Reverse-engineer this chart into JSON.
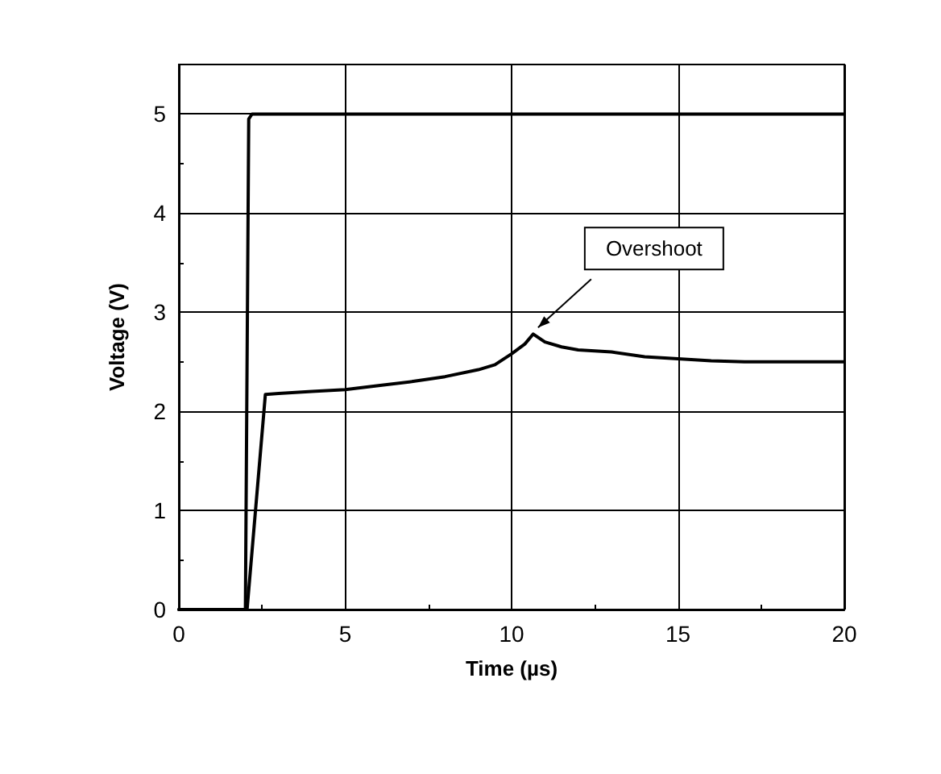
{
  "chart_data": {
    "type": "line",
    "xlabel": "Time (µs)",
    "ylabel": "Voltage (V)",
    "xlim": [
      0,
      20
    ],
    "ylim": [
      0,
      5.5
    ],
    "xticks": [
      0,
      5,
      10,
      15,
      20
    ],
    "yticks": [
      0,
      1,
      2,
      3,
      4,
      5
    ],
    "grid": true,
    "marker": "none",
    "line_style": "solid",
    "series": [
      {
        "color": "#000000",
        "x": [
          0,
          2.0,
          2.1,
          2.2,
          20
        ],
        "values": [
          0,
          0,
          4.95,
          5,
          5
        ]
      },
      {
        "color": "#000000",
        "x": [
          0,
          2.05,
          2.6,
          3.0,
          4,
          5,
          6,
          7,
          8,
          9,
          9.5,
          10,
          10.4,
          10.65,
          11,
          11.5,
          12,
          13,
          14,
          15,
          16,
          17,
          20
        ],
        "values": [
          0,
          0,
          2.17,
          2.18,
          2.2,
          2.22,
          2.26,
          2.3,
          2.35,
          2.42,
          2.47,
          2.58,
          2.68,
          2.78,
          2.7,
          2.65,
          2.62,
          2.6,
          2.55,
          2.53,
          2.51,
          2.5,
          2.5
        ]
      }
    ],
    "annotations": [
      {
        "text": "Overshoot",
        "x": 10.65,
        "y": 2.78
      }
    ]
  }
}
